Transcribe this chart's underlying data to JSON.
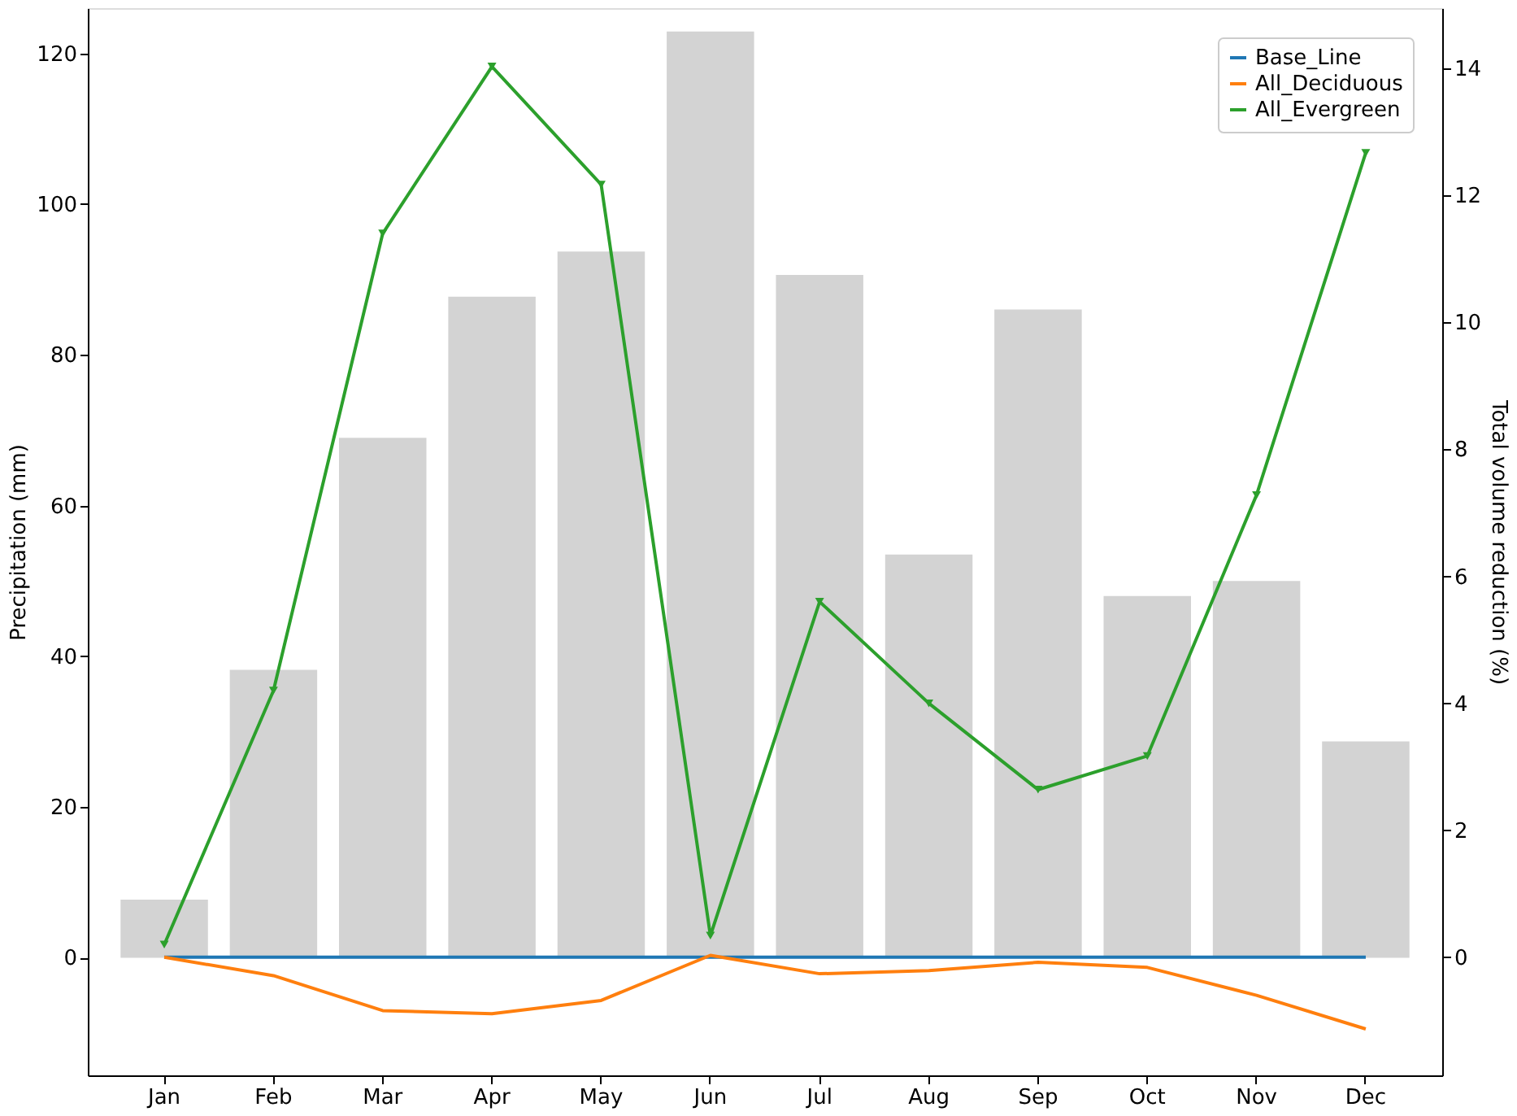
{
  "chart_data": {
    "type": "bar",
    "categories": [
      "Jan",
      "Feb",
      "Mar",
      "Apr",
      "May",
      "Jun",
      "Jul",
      "Aug",
      "Sep",
      "Oct",
      "Nov",
      "Dec"
    ],
    "ylabel": "Precipitation (mm)",
    "y2label": "Total volume reduction (%)",
    "ylim": [
      -15.6,
      126
    ],
    "yticks": [
      0,
      20,
      40,
      60,
      80,
      100,
      120
    ],
    "y2lim": [
      -1.86,
      14.95
    ],
    "y2ticks": [
      0,
      2,
      4,
      6,
      8,
      10,
      12,
      14
    ],
    "grid": false,
    "legend": "top right",
    "series": [
      {
        "color": "#d3d3d3",
        "values": [
          7.7,
          38.2,
          69,
          87.7,
          93.7,
          122.9,
          90.6,
          53.5,
          86,
          48,
          50,
          28.7
        ]
      },
      {
        "type": "line",
        "name": "Base_Line",
        "axis": "y2",
        "color": "#1f77b4",
        "marker": "none",
        "values": [
          0,
          0,
          0,
          0,
          0,
          0,
          0,
          0,
          0,
          0,
          0,
          0
        ]
      },
      {
        "type": "line",
        "name": "All_Deciduous",
        "axis": "y2",
        "color": "#ff7f0e",
        "marker": "none",
        "values": [
          0,
          -0.29,
          -0.84,
          -0.89,
          -0.68,
          0.03,
          -0.26,
          -0.21,
          -0.08,
          -0.16,
          -0.6,
          -1.13
        ]
      },
      {
        "type": "line",
        "name": "All_Evergreen",
        "axis": "y2",
        "color": "#2ca02c",
        "marker": "triangle",
        "values": [
          0.2,
          4.2,
          11.4,
          14.03,
          12.17,
          0.34,
          5.6,
          4.0,
          2.64,
          3.17,
          7.28,
          12.67
        ]
      }
    ]
  }
}
